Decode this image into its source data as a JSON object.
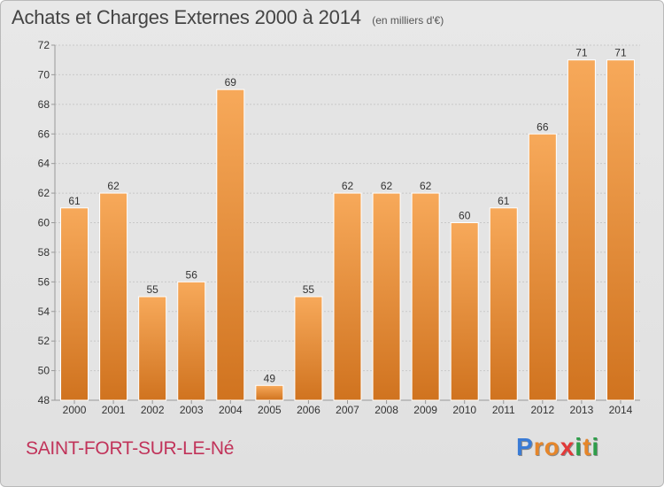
{
  "header": {
    "title": "Achats et Charges Externes 2000 à 2014",
    "subtitle": "(en milliers d'€)"
  },
  "footer": {
    "commune": "SAINT-FORT-SUR-LE-Né",
    "logo_letters": [
      "P",
      "r",
      "o",
      "x",
      "i",
      "t",
      "i"
    ],
    "logo_colors": [
      "#3a7bd5",
      "#e6862a",
      "#e6862a",
      "#e23a3a",
      "#2e9e4a",
      "#e6862a",
      "#2e9e4a"
    ]
  },
  "colors": {
    "bar_light": "#f7a95a",
    "bar_dark": "#d0731f",
    "grid": "#c8c8c8",
    "axis": "#999999"
  },
  "chart_data": {
    "type": "bar",
    "title": "Achats et Charges Externes 2000 à 2014",
    "subtitle": "(en milliers d'€)",
    "categories": [
      "2000",
      "2001",
      "2002",
      "2003",
      "2004",
      "2005",
      "2006",
      "2007",
      "2008",
      "2009",
      "2010",
      "2011",
      "2012",
      "2013",
      "2014"
    ],
    "values": [
      61,
      62,
      55,
      56,
      69,
      49,
      55,
      62,
      62,
      62,
      60,
      61,
      66,
      71,
      71
    ],
    "ylim": [
      48,
      72
    ],
    "yticks": [
      48,
      50,
      52,
      54,
      56,
      58,
      60,
      62,
      64,
      66,
      68,
      70,
      72
    ],
    "grid": true,
    "xlabel": "",
    "ylabel": ""
  }
}
